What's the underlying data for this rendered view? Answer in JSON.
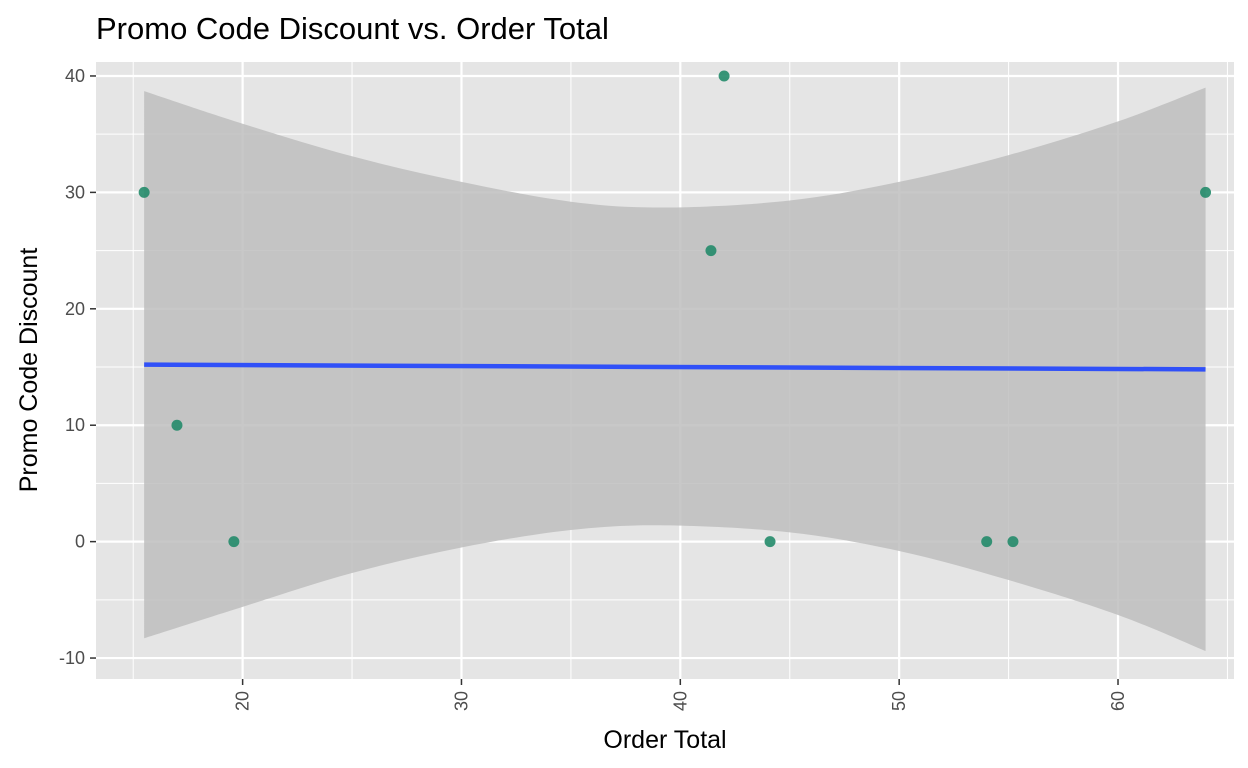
{
  "chart_data": {
    "type": "scatter",
    "title": "Promo Code Discount vs. Order Total",
    "xlabel": "Order Total",
    "ylabel": "Promo Code Discount",
    "xlim": [
      13.3,
      65.3
    ],
    "ylim": [
      -11.8,
      41.2
    ],
    "x_ticks": [
      20,
      30,
      40,
      50,
      60
    ],
    "y_ticks": [
      -10,
      0,
      10,
      20,
      30,
      40
    ],
    "x_tick_labels": [
      "20",
      "30",
      "40",
      "50",
      "60"
    ],
    "y_tick_labels": [
      "-10",
      "0",
      "10",
      "20",
      "30",
      "40"
    ],
    "grid": true,
    "points": [
      {
        "x": 15.5,
        "y": 30
      },
      {
        "x": 17.0,
        "y": 10
      },
      {
        "x": 19.6,
        "y": 0
      },
      {
        "x": 41.4,
        "y": 25
      },
      {
        "x": 42.0,
        "y": 40
      },
      {
        "x": 44.1,
        "y": 0
      },
      {
        "x": 54.0,
        "y": 0
      },
      {
        "x": 55.2,
        "y": 0
      },
      {
        "x": 64.0,
        "y": 30
      }
    ],
    "trend_line": {
      "x": [
        15.5,
        64.0
      ],
      "y": [
        15.2,
        14.8
      ]
    },
    "confidence_band": {
      "x": [
        15.5,
        20.0,
        25.0,
        30.0,
        35.0,
        39.3,
        45.0,
        50.0,
        55.0,
        60.0,
        64.0
      ],
      "upper": [
        38.7,
        35.9,
        33.1,
        30.9,
        29.2,
        28.7,
        29.3,
        30.9,
        33.2,
        36.1,
        39.0
      ],
      "lower": [
        -8.3,
        -5.6,
        -2.7,
        -0.5,
        1.0,
        1.4,
        0.8,
        -0.8,
        -3.3,
        -6.3,
        -9.4
      ]
    },
    "colors": {
      "point": "#238b6a",
      "trend_line": "#3050f8",
      "band": "#bebebe",
      "panel": "#e5e5e5",
      "grid": "#ffffff"
    }
  }
}
